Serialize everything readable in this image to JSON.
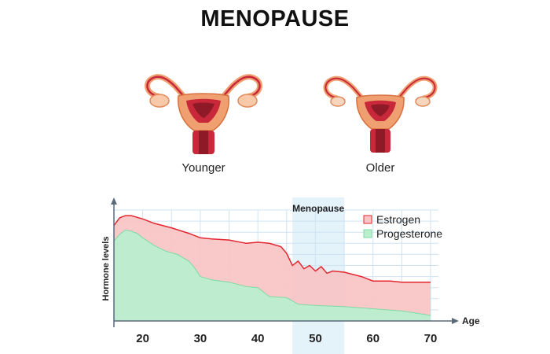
{
  "title": "MENOPAUSE",
  "illustrations": [
    {
      "caption": "Younger",
      "icon": "uterus-young-icon"
    },
    {
      "caption": "Older",
      "icon": "uterus-old-icon"
    }
  ],
  "colors": {
    "estrogen_fill": "#f9c4c4",
    "estrogen_line": "#e3262f",
    "progesterone_fill": "#b9efcf",
    "progesterone_line": "#7fd9a5",
    "grid": "#cfe3f2",
    "menopause_band": "#e4f2fa",
    "axis": "#5a6a7a",
    "organ_outer": "#f0a070",
    "organ_inner": "#c8283a",
    "organ_dark": "#8e1a28"
  },
  "chart_data": {
    "type": "area",
    "xlabel": "Age",
    "ylabel": "Hormone levels",
    "xlim": [
      15,
      73
    ],
    "ylim": [
      0,
      100
    ],
    "x_ticks": [
      20,
      30,
      40,
      50,
      60,
      70
    ],
    "band": {
      "label": "Menopause",
      "from": 46,
      "to": 55
    },
    "legend_position": "top-right",
    "grid": true,
    "series": [
      {
        "name": "Estrogen",
        "x": [
          15,
          16,
          17,
          18,
          20,
          22,
          25,
          28,
          30,
          32,
          35,
          38,
          40,
          42,
          44,
          45,
          46,
          47,
          48,
          49,
          50,
          51,
          52,
          53,
          55,
          58,
          60,
          63,
          65,
          68,
          70
        ],
        "values": [
          86,
          93,
          95,
          95,
          92,
          88,
          84,
          79,
          75,
          74,
          73,
          70,
          71,
          70,
          67,
          61,
          50,
          54,
          47,
          50,
          45,
          49,
          43,
          45,
          44,
          40,
          36,
          36,
          35,
          35,
          35
        ]
      },
      {
        "name": "Progesterone",
        "x": [
          15,
          16,
          17,
          18,
          19,
          20,
          22,
          24,
          26,
          28,
          29,
          30,
          32,
          35,
          38,
          40,
          42,
          45,
          47,
          50,
          55,
          60,
          65,
          70
        ],
        "values": [
          72,
          78,
          82,
          81,
          79,
          75,
          68,
          63,
          60,
          54,
          48,
          40,
          37,
          35,
          31,
          30,
          22,
          21,
          15,
          14,
          13,
          11,
          9,
          5
        ]
      }
    ]
  }
}
